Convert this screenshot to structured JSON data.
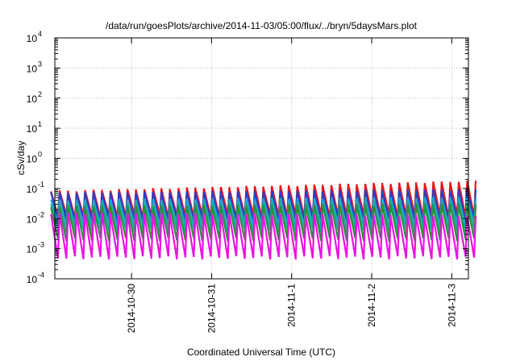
{
  "chart_data": {
    "type": "line",
    "title": "/data/run/goesPlots/archive/2014-11-03/05:00/flux/../bryn/5daysMars.plot",
    "xlabel": "Coordinated Universal Time (UTC)",
    "ylabel": "cSv/day",
    "y_scale": "log",
    "ylim": [
      0.0001,
      10000
    ],
    "y_ticks": [
      {
        "base": "10",
        "exp": "-4"
      },
      {
        "base": "10",
        "exp": "-3"
      },
      {
        "base": "10",
        "exp": "-2"
      },
      {
        "base": "10",
        "exp": "-1"
      },
      {
        "base": "10",
        "exp": "0"
      },
      {
        "base": "10",
        "exp": "1"
      },
      {
        "base": "10",
        "exp": "2"
      },
      {
        "base": "10",
        "exp": "3"
      },
      {
        "base": "10",
        "exp": "4"
      }
    ],
    "xlim": [
      "2014-10-29T01:00",
      "2014-11-03T05:00"
    ],
    "x_ticks": [
      "2014-10-30",
      "2014-10-31",
      "2014-11-1",
      "2014-11-2",
      "2014-11-3"
    ],
    "grid": true,
    "legend": "none",
    "series": [
      {
        "color": "#e8161c",
        "peak_start": 0.08,
        "peak_end": 0.17,
        "trough": 0.012
      },
      {
        "color": "#2b3ec7",
        "peak_start": 0.07,
        "peak_end": 0.09,
        "trough": 0.009
      },
      {
        "color": "#21a3c9",
        "peak_start": 0.04,
        "peak_end": 0.05,
        "trough": 0.006
      },
      {
        "color": "#1ab0a0",
        "peak_start": 0.03,
        "peak_end": 0.035,
        "trough": 0.004
      },
      {
        "color": "#2d8f3a",
        "peak_start": 0.025,
        "peak_end": 0.03,
        "trough": 0.002
      },
      {
        "color": "#ec12e4",
        "peak_start": 0.015,
        "peak_end": 0.012,
        "trough": 0.0005
      }
    ]
  }
}
